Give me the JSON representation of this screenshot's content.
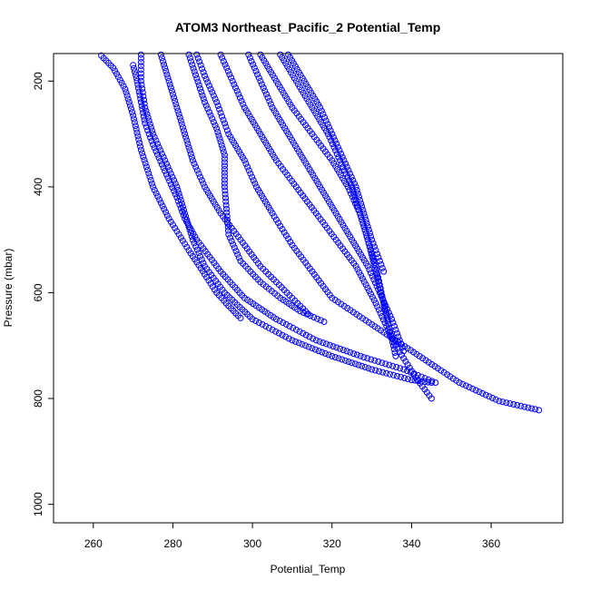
{
  "chart_data": {
    "type": "scatter",
    "title": "ATOM3 Northeast_Pacific_2 Potential_Temp",
    "xlabel": "Potential_Temp",
    "ylabel": "Pressure (mbar)",
    "xlim": [
      250,
      378
    ],
    "ylim": [
      1035,
      148
    ],
    "y_reversed": true,
    "xticks": [
      260,
      280,
      300,
      320,
      340,
      360
    ],
    "yticks": [
      200,
      400,
      600,
      800,
      1000
    ],
    "marker": "open-circle",
    "color": "#0000ff",
    "grid": false,
    "series": [
      {
        "x": [
          262,
          265,
          268,
          270,
          272,
          275,
          279,
          284,
          288,
          291,
          294,
          297
        ],
        "y": [
          152,
          175,
          215,
          265,
          330,
          400,
          460,
          520,
          565,
          600,
          625,
          648
        ]
      },
      {
        "x": [
          270,
          271,
          272,
          273,
          275,
          278,
          281,
          283,
          286,
          292,
          298,
          306,
          316,
          328,
          338,
          346
        ],
        "y": [
          170,
          200,
          240,
          280,
          320,
          370,
          420,
          460,
          500,
          560,
          610,
          650,
          690,
          722,
          745,
          770
        ]
      },
      {
        "x": [
          272,
          272,
          273,
          275,
          278,
          281,
          283,
          285,
          288,
          293,
          300,
          310,
          320,
          330,
          340,
          345
        ],
        "y": [
          150,
          200,
          250,
          300,
          350,
          400,
          450,
          500,
          550,
          600,
          650,
          690,
          720,
          745,
          765,
          770
        ]
      },
      {
        "x": [
          277,
          279,
          281,
          283,
          285,
          288,
          292,
          297,
          302,
          306,
          310,
          314
        ],
        "y": [
          150,
          200,
          250,
          300,
          350,
          400,
          450,
          500,
          550,
          580,
          610,
          640
        ]
      },
      {
        "x": [
          284,
          286,
          288,
          291,
          293,
          293,
          294,
          297,
          302,
          307,
          312,
          318
        ],
        "y": [
          150,
          195,
          240,
          290,
          340,
          400,
          490,
          540,
          580,
          610,
          635,
          655
        ]
      },
      {
        "x": [
          286,
          288,
          291,
          294,
          298,
          301,
          305,
          310,
          315,
          320,
          330,
          342,
          352,
          362,
          372
        ],
        "y": [
          150,
          190,
          240,
          300,
          350,
          400,
          450,
          510,
          560,
          610,
          660,
          720,
          770,
          805,
          822
        ]
      },
      {
        "x": [
          292,
          295,
          298,
          302,
          306,
          311,
          316,
          321,
          326,
          331,
          336,
          341,
          345
        ],
        "y": [
          150,
          200,
          250,
          300,
          350,
          400,
          450,
          500,
          550,
          620,
          700,
          760,
          800
        ]
      },
      {
        "x": [
          299,
          302,
          305,
          309,
          313,
          317,
          321,
          325,
          329,
          332,
          335,
          338
        ],
        "y": [
          150,
          200,
          250,
          300,
          350,
          400,
          450,
          500,
          550,
          600,
          650,
          710
        ]
      },
      {
        "x": [
          302,
          306,
          310,
          315,
          320,
          324,
          327,
          329,
          331,
          333,
          336
        ],
        "y": [
          150,
          200,
          250,
          300,
          350,
          400,
          450,
          500,
          550,
          620,
          720
        ]
      },
      {
        "x": [
          307,
          311,
          315,
          319,
          322,
          325,
          327,
          329,
          331,
          334
        ],
        "y": [
          150,
          200,
          250,
          300,
          350,
          400,
          450,
          500,
          560,
          650
        ]
      },
      {
        "x": [
          309,
          313,
          317,
          320,
          323,
          326,
          328,
          330,
          333
        ],
        "y": [
          150,
          200,
          250,
          300,
          350,
          400,
          450,
          500,
          560
        ]
      }
    ]
  }
}
